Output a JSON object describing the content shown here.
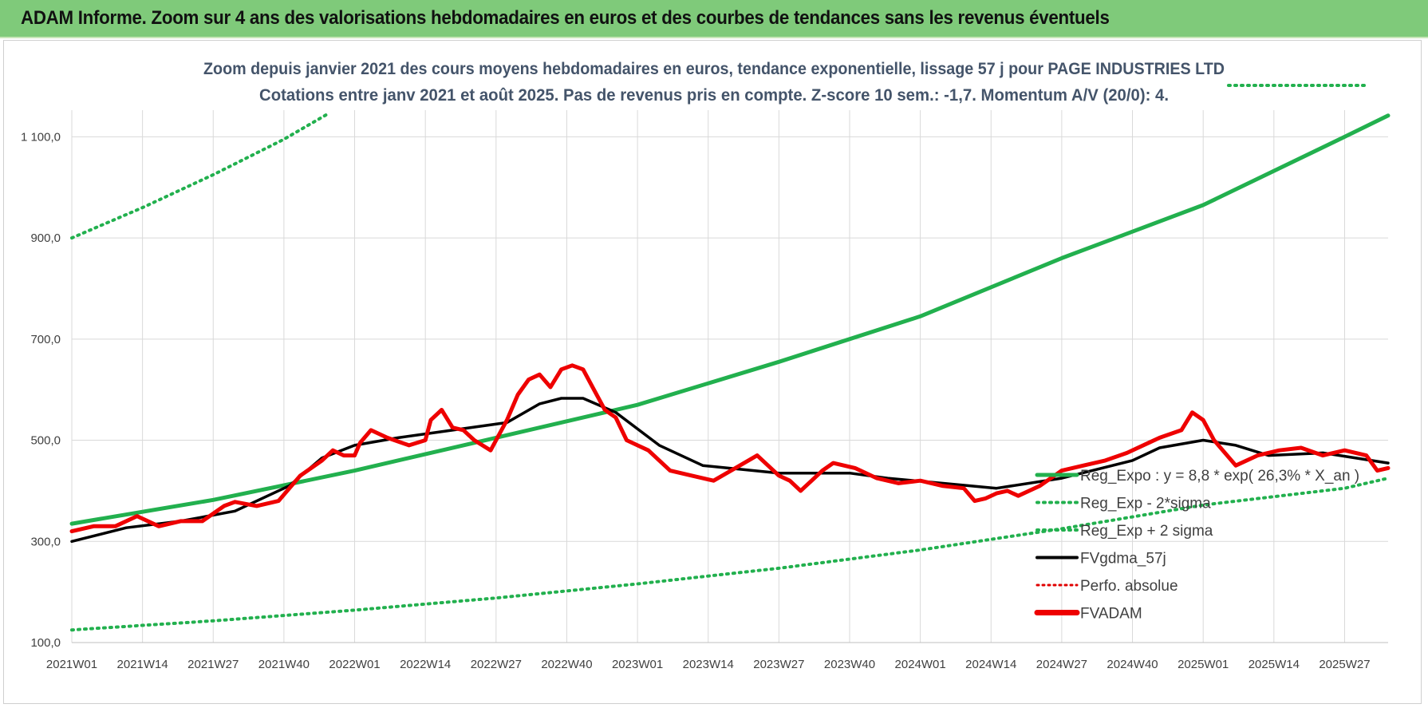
{
  "header": {
    "title": "ADAM Informe. Zoom sur 4 ans des valorisations hebdomadaires en euros et des courbes de tendances sans les revenus éventuels"
  },
  "colors": {
    "banner": "#7fca7a",
    "reg_expo": "#22b04e",
    "sigma": "#22b04e",
    "fv57": "#000000",
    "perfo": "#e00000",
    "fvadam": "#ee0000",
    "grid": "#d9d9d9"
  },
  "chart_data": {
    "type": "line",
    "subtitle_lines": [
      "Zoom depuis janvier 2021 des cours moyens hebdomadaires en euros, tendance exponentielle, lissage 57 j pour PAGE INDUSTRIES LTD",
      "Cotations entre janv 2021 et août 2025.  Pas de revenus pris en compte. Z-score 10 sem.: -1,7. Momentum A/V (20/0): 4."
    ],
    "ylim": [
      100,
      1200
    ],
    "y_ticks": [
      100,
      300,
      500,
      700,
      900,
      1100
    ],
    "y_tick_labels": [
      "100,0",
      "300,0",
      "500,0",
      "700,0",
      "900,0",
      "1 100,0"
    ],
    "x_ticks": [
      "2021W01",
      "2021W14",
      "2021W27",
      "2021W40",
      "2022W01",
      "2022W14",
      "2022W27",
      "2022W40",
      "2023W01",
      "2023W14",
      "2023W27",
      "2023W40",
      "2024W01",
      "2024W14",
      "2024W27",
      "2024W40",
      "2025W01",
      "2025W14",
      "2025W27"
    ],
    "x_tick_weeks": [
      0,
      13,
      26,
      39,
      52,
      65,
      78,
      91,
      104,
      117,
      130,
      143,
      156,
      169,
      182,
      195,
      208,
      221,
      234
    ],
    "x_range_weeks": [
      0,
      242
    ],
    "legend": [
      {
        "name": "Reg_Expo : y = 8,8 * exp( 26,3% *  X_an )",
        "style": "solid-green"
      },
      {
        "name": "Reg_Exp - 2*sigma",
        "style": "dotted-green"
      },
      {
        "name": "Reg_Exp + 2 sigma",
        "style": "dotted-green"
      },
      {
        "name": "FVgdma_57j",
        "style": "solid-black"
      },
      {
        "name": "Perfo. absolue",
        "style": "dotted-red"
      },
      {
        "name": "FVADAM",
        "style": "solid-red"
      }
    ],
    "series": [
      {
        "name": "Reg_Expo : y = 8,8 * exp( 26,3% *  X_an )",
        "x": [
          0,
          26,
          52,
          78,
          104,
          130,
          156,
          182,
          208,
          234,
          242
        ],
        "values": [
          335,
          382,
          440,
          505,
          570,
          655,
          745,
          860,
          965,
          1100,
          1142
        ]
      },
      {
        "name": "Reg_Exp - 2*sigma",
        "x": [
          0,
          26,
          52,
          78,
          104,
          130,
          156,
          182,
          208,
          234,
          242
        ],
        "values": [
          125,
          143,
          164,
          188,
          216,
          247,
          283,
          325,
          372,
          405,
          425
        ]
      },
      {
        "name": "Reg_Exp + 2 sigma",
        "x": [
          0,
          13,
          26,
          39,
          47
        ],
        "values": [
          900,
          960,
          1025,
          1095,
          1145
        ]
      },
      {
        "name": "FVgdma_57j",
        "x": [
          0,
          10,
          20,
          30,
          40,
          46,
          52,
          60,
          70,
          80,
          86,
          90,
          94,
          100,
          108,
          116,
          130,
          143,
          150,
          160,
          170,
          182,
          195,
          200,
          208,
          214,
          220,
          230,
          242
        ],
        "values": [
          300,
          327,
          340,
          360,
          410,
          465,
          490,
          505,
          520,
          535,
          572,
          583,
          583,
          555,
          490,
          450,
          435,
          435,
          425,
          415,
          405,
          425,
          460,
          485,
          500,
          490,
          470,
          475,
          455
        ]
      },
      {
        "name": "FVADAM",
        "x": [
          0,
          4,
          8,
          12,
          16,
          20,
          24,
          28,
          30,
          34,
          38,
          40,
          42,
          44,
          46,
          48,
          50,
          52,
          53,
          55,
          58,
          62,
          65,
          66,
          68,
          70,
          72,
          74,
          77,
          78,
          80,
          82,
          84,
          86,
          88,
          90,
          92,
          94,
          96,
          98,
          100,
          102,
          104,
          106,
          110,
          114,
          118,
          122,
          126,
          128,
          130,
          132,
          134,
          138,
          140,
          144,
          148,
          152,
          156,
          160,
          164,
          166,
          168,
          170,
          172,
          174,
          178,
          182,
          186,
          190,
          194,
          198,
          200,
          204,
          206,
          208,
          210,
          214,
          218,
          222,
          226,
          230,
          234,
          238,
          240,
          242
        ],
        "values": [
          320,
          330,
          330,
          350,
          330,
          340,
          340,
          370,
          378,
          370,
          380,
          405,
          430,
          445,
          460,
          480,
          470,
          470,
          495,
          520,
          505,
          490,
          500,
          540,
          560,
          525,
          520,
          500,
          480,
          500,
          540,
          590,
          620,
          630,
          605,
          640,
          648,
          640,
          600,
          560,
          545,
          500,
          490,
          480,
          440,
          430,
          420,
          445,
          470,
          450,
          430,
          420,
          400,
          440,
          455,
          445,
          425,
          415,
          420,
          410,
          405,
          380,
          385,
          395,
          400,
          390,
          410,
          440,
          450,
          460,
          475,
          495,
          505,
          520,
          555,
          540,
          500,
          450,
          470,
          480,
          485,
          470,
          480,
          470,
          440,
          445
        ]
      }
    ]
  }
}
